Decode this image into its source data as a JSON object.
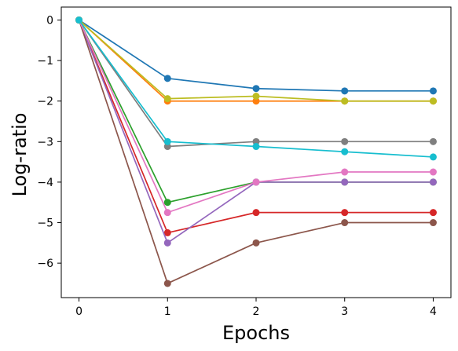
{
  "chart_data": {
    "type": "line",
    "xlabel": "Epochs",
    "ylabel": "Log-ratio",
    "xlim": [
      -0.2,
      4.2
    ],
    "ylim": [
      -6.85,
      0.32
    ],
    "x": [
      0,
      1,
      2,
      3,
      4
    ],
    "xticks": [
      "0",
      "1",
      "2",
      "3",
      "4"
    ],
    "yticks": [
      0,
      -1,
      -2,
      -3,
      -4,
      -5,
      -6
    ],
    "ytick_labels": [
      "0",
      "−1",
      "−2",
      "−3",
      "−4",
      "−5",
      "−6"
    ],
    "grid": false,
    "legend": "none",
    "series": [
      {
        "color": "#1f77b4",
        "values": [
          0,
          -1.44,
          -1.69,
          -1.75,
          -1.75
        ]
      },
      {
        "color": "#ff7f0e",
        "values": [
          0,
          -2.0,
          -2.0,
          -2.0,
          -2.0
        ]
      },
      {
        "color": "#2ca02c",
        "values": [
          0,
          -4.5,
          -4.0,
          -4.0,
          -4.0
        ]
      },
      {
        "color": "#d62728",
        "values": [
          0,
          -5.25,
          -4.75,
          -4.75,
          -4.75
        ]
      },
      {
        "color": "#9467bd",
        "values": [
          0,
          -5.5,
          -4.0,
          -4.0,
          -4.0
        ]
      },
      {
        "color": "#8c564b",
        "values": [
          0,
          -6.5,
          -5.5,
          -5.0,
          -5.0
        ]
      },
      {
        "color": "#e377c2",
        "values": [
          0,
          -4.75,
          -4.0,
          -3.75,
          -3.75
        ]
      },
      {
        "color": "#7f7f7f",
        "values": [
          0,
          -3.12,
          -3.0,
          -3.0,
          -3.0
        ]
      },
      {
        "color": "#bcbd22",
        "values": [
          0,
          -1.94,
          -1.88,
          -2.0,
          -2.0
        ]
      },
      {
        "color": "#17becf",
        "values": [
          0,
          -3.0,
          -3.12,
          -3.25,
          -3.38
        ]
      }
    ]
  }
}
